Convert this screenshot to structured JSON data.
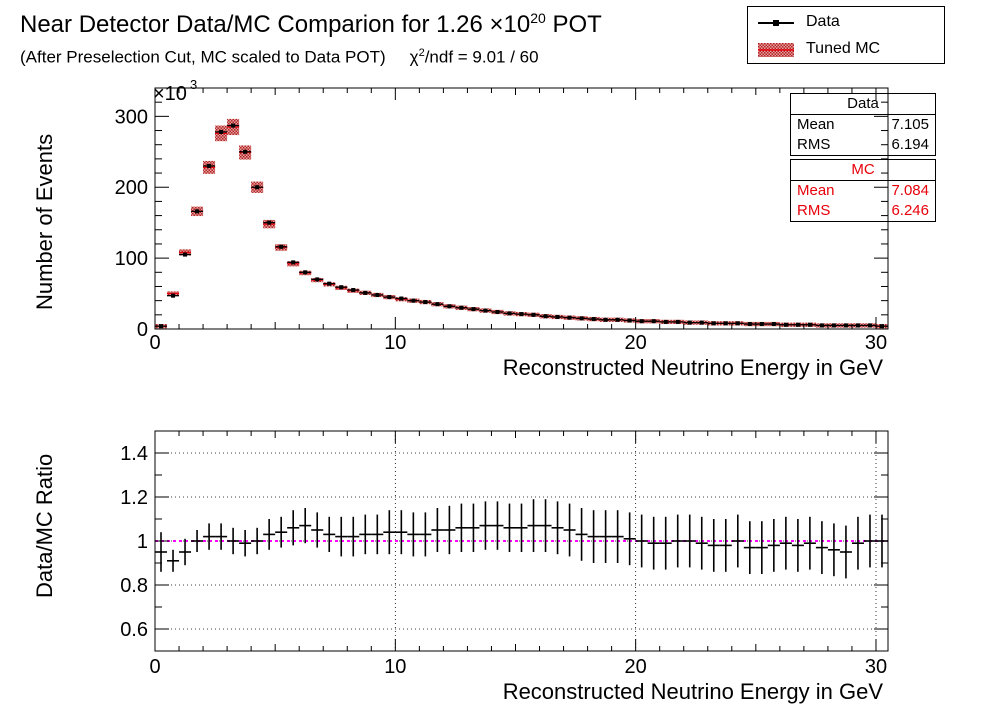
{
  "header": {
    "title_main": "Near Detector Data/MC Comparion for 1.26 ×10",
    "title_exp": "20",
    "title_end": " POT",
    "subtitle_pre": "(After Preselection Cut, MC scaled to Data POT)",
    "chi_lead": "χ",
    "chi_exp": "2",
    "chi_rest": "/ndf = 9.01 / 60"
  },
  "legend": {
    "entries": [
      {
        "label": "Data",
        "color": "#000000"
      },
      {
        "label": "Tuned MC",
        "color": "#c0392b"
      }
    ]
  },
  "stats": {
    "data": {
      "title": "Data",
      "mean_label": "Mean",
      "mean": "7.105",
      "rms_label": "RMS",
      "rms": "6.194"
    },
    "mc": {
      "title": "MC",
      "mean_label": "Mean",
      "mean": "7.084",
      "rms_label": "RMS",
      "rms": "6.246",
      "color": "#e8000b"
    }
  },
  "chart_data": [
    {
      "type": "scatter",
      "title": "Near Detector Data/MC Comparion for 1.26 ×10^20 POT",
      "xlabel": "Reconstructed Neutrino Energy in GeV",
      "ylabel": "Number of Events",
      "y_multiplier_label": "×10",
      "y_multiplier_exp": "3",
      "xlim": [
        0,
        30.5
      ],
      "ylim": [
        0,
        340
      ],
      "xticks": [
        0,
        10,
        20,
        30
      ],
      "yticks": [
        0,
        100,
        200,
        300
      ],
      "grid": false,
      "legend": "top-right",
      "bin_width": 0.5,
      "x": [
        0.25,
        0.75,
        1.25,
        1.75,
        2.25,
        2.75,
        3.25,
        3.75,
        4.25,
        4.75,
        5.25,
        5.75,
        6.25,
        6.75,
        7.25,
        7.75,
        8.25,
        8.75,
        9.25,
        9.75,
        10.25,
        10.75,
        11.25,
        11.75,
        12.25,
        12.75,
        13.25,
        13.75,
        14.25,
        14.75,
        15.25,
        15.75,
        16.25,
        16.75,
        17.25,
        17.75,
        18.25,
        18.75,
        19.25,
        19.75,
        20.25,
        20.75,
        21.25,
        21.75,
        22.25,
        22.75,
        23.25,
        23.75,
        24.25,
        24.75,
        25.25,
        25.75,
        26.25,
        26.75,
        27.25,
        27.75,
        28.25,
        28.75,
        29.25,
        29.75,
        30.25
      ],
      "series": [
        {
          "name": "Data",
          "color": "#000000",
          "values": [
            4,
            47,
            105,
            166,
            230,
            278,
            287,
            250,
            200,
            150,
            116,
            94,
            80,
            70,
            64,
            59,
            55,
            51,
            48,
            45,
            43,
            40,
            38,
            35,
            32,
            30,
            28,
            26,
            24,
            22,
            21,
            20,
            18,
            17,
            16,
            15,
            14,
            13,
            13,
            12,
            11,
            11,
            10,
            10,
            9,
            9,
            8,
            8,
            8,
            7,
            7,
            7,
            6,
            6,
            6,
            5,
            5,
            5,
            5,
            5,
            4
          ]
        },
        {
          "name": "Tuned MC",
          "color": "#c0392b",
          "values": [
            4,
            50,
            108,
            166,
            228,
            276,
            285,
            249,
            200,
            148,
            115,
            92,
            79,
            69,
            63,
            58,
            54,
            51,
            48,
            45,
            42,
            40,
            38,
            35,
            32,
            30,
            28,
            26,
            24,
            22,
            21,
            20,
            18,
            17,
            16,
            15,
            14,
            13,
            13,
            12,
            11,
            11,
            10,
            10,
            9,
            9,
            8,
            8,
            8,
            7,
            7,
            7,
            6,
            6,
            6,
            5,
            5,
            5,
            5,
            5,
            4
          ]
        }
      ]
    },
    {
      "type": "scatter",
      "xlabel": "Reconstructed Neutrino Energy in GeV",
      "ylabel": "Data/MC Ratio",
      "xlim": [
        0,
        30.5
      ],
      "ylim": [
        0.5,
        1.5
      ],
      "xticks": [
        0,
        10,
        20,
        30
      ],
      "yticks": [
        0.6,
        0.8,
        1,
        1.2,
        1.4
      ],
      "grid": true,
      "reference_line": 1,
      "reference_color": "#ff00ff",
      "bin_width": 0.5,
      "x": [
        0.25,
        0.75,
        1.25,
        1.75,
        2.25,
        2.75,
        3.25,
        3.75,
        4.25,
        4.75,
        5.25,
        5.75,
        6.25,
        6.75,
        7.25,
        7.75,
        8.25,
        8.75,
        9.25,
        9.75,
        10.25,
        10.75,
        11.25,
        11.75,
        12.25,
        12.75,
        13.25,
        13.75,
        14.25,
        14.75,
        15.25,
        15.75,
        16.25,
        16.75,
        17.25,
        17.75,
        18.25,
        18.75,
        19.25,
        19.75,
        20.25,
        20.75,
        21.25,
        21.75,
        22.25,
        22.75,
        23.25,
        23.75,
        24.25,
        24.75,
        25.25,
        25.75,
        26.25,
        26.75,
        27.25,
        27.75,
        28.25,
        28.75,
        29.25,
        29.75,
        30.25
      ],
      "ratio": [
        0.95,
        0.91,
        0.95,
        1.0,
        1.02,
        1.02,
        1.0,
        0.99,
        1.0,
        1.03,
        1.04,
        1.06,
        1.07,
        1.05,
        1.03,
        1.02,
        1.02,
        1.03,
        1.03,
        1.04,
        1.04,
        1.03,
        1.03,
        1.05,
        1.05,
        1.06,
        1.06,
        1.07,
        1.07,
        1.06,
        1.06,
        1.07,
        1.07,
        1.06,
        1.05,
        1.03,
        1.02,
        1.02,
        1.02,
        1.01,
        1.0,
        0.99,
        0.99,
        1.0,
        1.0,
        0.99,
        0.98,
        0.98,
        1.0,
        0.97,
        0.97,
        0.98,
        0.99,
        0.98,
        0.99,
        0.97,
        0.96,
        0.95,
        0.99,
        1.0,
        1.0
      ],
      "error": [
        0.09,
        0.05,
        0.06,
        0.05,
        0.06,
        0.06,
        0.06,
        0.06,
        0.06,
        0.07,
        0.07,
        0.08,
        0.08,
        0.08,
        0.08,
        0.09,
        0.09,
        0.09,
        0.09,
        0.1,
        0.1,
        0.1,
        0.1,
        0.1,
        0.11,
        0.11,
        0.11,
        0.11,
        0.11,
        0.11,
        0.11,
        0.12,
        0.12,
        0.12,
        0.12,
        0.12,
        0.12,
        0.12,
        0.12,
        0.12,
        0.12,
        0.12,
        0.12,
        0.12,
        0.12,
        0.12,
        0.12,
        0.12,
        0.12,
        0.12,
        0.12,
        0.12,
        0.12,
        0.12,
        0.12,
        0.12,
        0.12,
        0.12,
        0.12,
        0.12,
        0.12
      ]
    }
  ]
}
